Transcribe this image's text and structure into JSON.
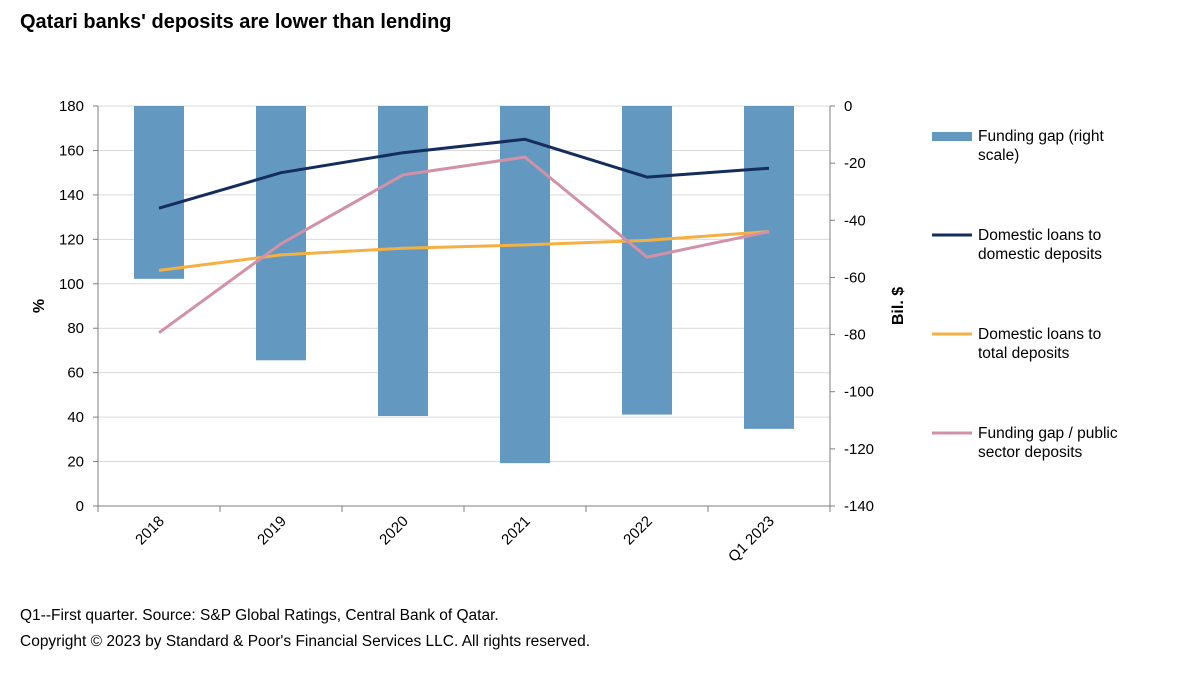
{
  "chart_data": {
    "type": "bar",
    "title": "Qatari banks' deposits are lower than lending",
    "categories": [
      "2018",
      "2019",
      "2020",
      "2021",
      "2022",
      "Q1 2023"
    ],
    "y_left": {
      "label": "%",
      "range": [
        0,
        180
      ],
      "ticks": [
        "0",
        "20",
        "40",
        "60",
        "80",
        "100",
        "120",
        "140",
        "160",
        "180"
      ]
    },
    "y_right": {
      "label": "Bil. $",
      "range": [
        -140,
        0
      ],
      "ticks": [
        "0",
        "-20",
        "-40",
        "-60",
        "-80",
        "-100",
        "-120",
        "-140"
      ]
    },
    "grid": true,
    "legend_position": "right",
    "series": [
      {
        "name": "Funding gap (right scale)",
        "kind": "bar",
        "axis": "right",
        "color": "#6399c0",
        "values": [
          -60.5,
          -89,
          -108.5,
          -125,
          -108,
          -113
        ]
      },
      {
        "name": "Domestic loans to domestic deposits",
        "kind": "line",
        "axis": "left",
        "color": "#142d5c",
        "values": [
          134,
          150,
          159,
          165,
          148,
          152
        ]
      },
      {
        "name": "Domestic loans to total deposits",
        "kind": "line",
        "axis": "left",
        "color": "#f4b043",
        "values": [
          106,
          113,
          116,
          117.5,
          119.5,
          123.5
        ]
      },
      {
        "name": "Funding gap / public sector deposits",
        "kind": "line",
        "axis": "left",
        "color": "#d391a8",
        "values": [
          78,
          118,
          149,
          157,
          112,
          123.5
        ]
      }
    ]
  },
  "notes": {
    "source": "Q1--First quarter. Source: S&P Global Ratings, Central Bank of Qatar.",
    "copyright": "Copyright © 2023 by Standard & Poor's Financial Services LLC. All rights reserved."
  }
}
